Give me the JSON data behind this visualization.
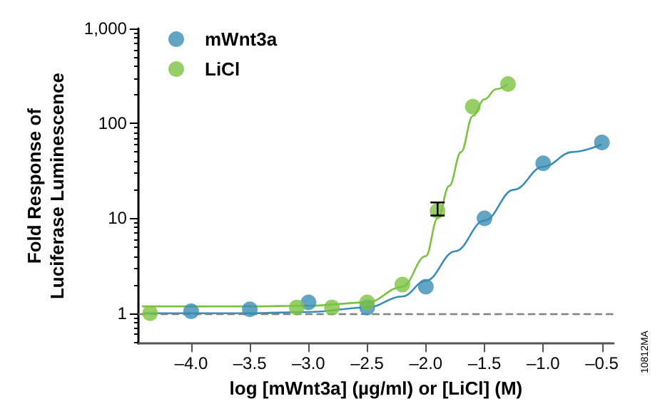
{
  "chart_data": {
    "type": "scatter",
    "xlabel": "log [mWnt3a] (µg/ml) or [LiCl] (M)",
    "ylabel": "Fold Response of\nLuciferase Luminescence",
    "log": "y",
    "xlim": [
      -4.45,
      -0.4
    ],
    "xticks": [
      {
        "value": -4.0,
        "label": "–4.0"
      },
      {
        "value": -3.5,
        "label": "–3.5"
      },
      {
        "value": -3.0,
        "label": "–3.0"
      },
      {
        "value": -2.5,
        "label": "–2.5"
      },
      {
        "value": -2.0,
        "label": "–2.0"
      },
      {
        "value": -1.5,
        "label": "–1.5"
      },
      {
        "value": -1.0,
        "label": "–1.0"
      },
      {
        "value": -0.5,
        "label": "–0.5"
      }
    ],
    "ylim": [
      0.48,
      1000
    ],
    "yticks": [
      1,
      10,
      100,
      {
        "value": 1000,
        "label": "1,000"
      }
    ],
    "grid": false,
    "legend": "top left",
    "marker": "circle",
    "annotations": [
      "10812MA"
    ],
    "ref_lines": [
      {
        "axis": "y",
        "value": 1,
        "label": null,
        "color": "#808080",
        "line_style": "dashed"
      }
    ],
    "series": [
      {
        "name": "mWnt3a",
        "color": "#3a8db5",
        "x": [
          -4.0,
          -3.5,
          -3.0,
          -2.5,
          -2.0,
          -1.5,
          -1.0,
          -0.5
        ],
        "values": [
          1.05,
          1.1,
          1.3,
          1.15,
          1.9,
          10,
          38,
          63
        ]
      },
      {
        "name": "LiCl",
        "color": "#7cc242",
        "x": [
          -4.35,
          -3.1,
          -2.8,
          -2.5,
          -2.2,
          -1.9,
          -1.6,
          -1.3
        ],
        "values": [
          1.0,
          1.15,
          1.15,
          1.3,
          2.0,
          12,
          150,
          260
        ],
        "errors": [
          null,
          null,
          null,
          null,
          null,
          [
            10.7,
            14.7
          ],
          null,
          null
        ]
      },
      {
        "type": "line",
        "color": "#3a8db5",
        "marker": "none",
        "x": [
          -4.4,
          -3.5,
          -3.0,
          -2.5,
          -2.2,
          -2.0,
          -1.75,
          -1.5,
          -1.25,
          -1.0,
          -0.75,
          -0.5
        ],
        "values": [
          1.0,
          1.0,
          1.03,
          1.15,
          1.5,
          2.2,
          4.5,
          9.5,
          20,
          35,
          50,
          60
        ]
      },
      {
        "type": "line",
        "color": "#7cc242",
        "marker": "none",
        "x": [
          -4.42,
          -3.5,
          -3.0,
          -2.5,
          -2.2,
          -2.0,
          -1.9,
          -1.8,
          -1.7,
          -1.6,
          -1.5,
          -1.4,
          -1.3
        ],
        "values": [
          1.18,
          1.18,
          1.2,
          1.3,
          1.9,
          4,
          10,
          22,
          50,
          120,
          180,
          230,
          260
        ]
      }
    ]
  }
}
